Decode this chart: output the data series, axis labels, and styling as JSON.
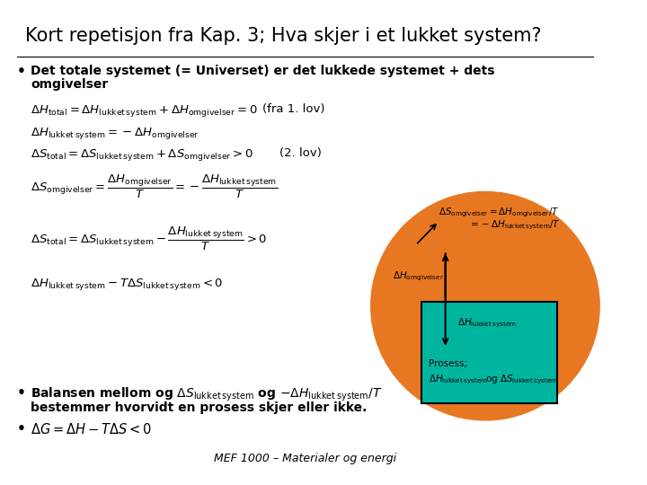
{
  "title": "Kort repetisjon fra Kap. 3; Hva skjer i et lukket system?",
  "title_fontsize": 16,
  "background_color": "#ffffff",
  "orange_circle_color": "#E87722",
  "teal_rect_color": "#00B5A0",
  "bullet1_line1": "Det totale systemet (= Universet) er det lukkede systemet + dets",
  "bullet1_line2": "omgivelser",
  "eq1_note": "(fra 1. lov)",
  "eq3_note": "(2. lov)",
  "circle_text1": "Prosess;",
  "footer": "MEF 1000 – Materialer og energi"
}
